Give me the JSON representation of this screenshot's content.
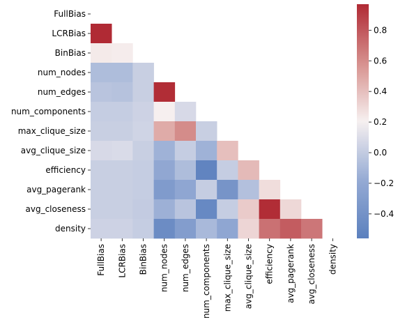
{
  "chart_data": {
    "type": "heatmap",
    "title": "",
    "xlabel": "",
    "ylabel": "",
    "x_categories": [
      "FullBias",
      "LCRBias",
      "BinBias",
      "num_nodes",
      "num_edges",
      "num_components",
      "max_clique_size",
      "avg_clique_size",
      "efficiency",
      "avg_pagerank",
      "avg_closeness",
      "density"
    ],
    "y_categories": [
      "FullBias",
      "LCRBias",
      "BinBias",
      "num_nodes",
      "num_edges",
      "num_components",
      "max_clique_size",
      "avg_clique_size",
      "efficiency",
      "avg_pagerank",
      "avg_closeness",
      "density"
    ],
    "mask": "upper-triangle-including-diagonal",
    "matrix": [
      [
        null,
        null,
        null,
        null,
        null,
        null,
        null,
        null,
        null,
        null,
        null,
        null
      ],
      [
        0.97,
        null,
        null,
        null,
        null,
        null,
        null,
        null,
        null,
        null,
        null,
        null
      ],
      [
        0.23,
        0.22,
        null,
        null,
        null,
        null,
        null,
        null,
        null,
        null,
        null,
        null
      ],
      [
        -0.08,
        -0.08,
        0.02,
        null,
        null,
        null,
        null,
        null,
        null,
        null,
        null,
        null
      ],
      [
        -0.04,
        -0.05,
        0.02,
        0.96,
        null,
        null,
        null,
        null,
        null,
        null,
        null,
        null
      ],
      [
        0.01,
        0.01,
        0.04,
        0.21,
        0.08,
        null,
        null,
        null,
        null,
        null,
        null,
        null
      ],
      [
        0.02,
        0.02,
        0.05,
        0.48,
        0.6,
        0.02,
        null,
        null,
        null,
        null,
        null,
        null
      ],
      [
        0.08,
        0.09,
        0.02,
        -0.14,
        0.01,
        -0.14,
        0.4,
        null,
        null,
        null,
        null,
        null
      ],
      [
        0.02,
        0.02,
        0.01,
        -0.21,
        -0.08,
        -0.52,
        0.01,
        0.42,
        null,
        null,
        null,
        null
      ],
      [
        0.02,
        0.02,
        0.01,
        -0.32,
        -0.22,
        0.01,
        -0.38,
        -0.06,
        0.28,
        null,
        null,
        null
      ],
      [
        0.02,
        0.02,
        0.0,
        -0.15,
        -0.04,
        -0.48,
        0.01,
        0.35,
        0.96,
        0.3,
        null,
        null
      ],
      [
        0.04,
        0.04,
        0.01,
        -0.45,
        -0.3,
        -0.1,
        -0.22,
        0.31,
        0.7,
        0.78,
        0.68,
        null
      ]
    ],
    "colorbar": {
      "colormap": "vlag",
      "vmin": -0.56,
      "vmax": 0.97,
      "ticks": [
        -0.4,
        -0.2,
        0.0,
        0.2,
        0.4,
        0.6,
        0.8
      ],
      "tick_labels": [
        "−0.4",
        "−0.2",
        "0.0",
        "0.2",
        "0.4",
        "0.6",
        "0.8"
      ]
    }
  }
}
